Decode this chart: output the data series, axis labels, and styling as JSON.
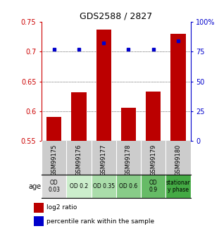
{
  "title": "GDS2588 / 2827",
  "samples": [
    "GSM99175",
    "GSM99176",
    "GSM99177",
    "GSM99178",
    "GSM99179",
    "GSM99180"
  ],
  "log2_ratio": [
    0.59,
    0.632,
    0.737,
    0.606,
    0.633,
    0.73
  ],
  "percentile_rank": [
    77,
    77,
    82,
    77,
    77,
    84
  ],
  "bar_bottom": 0.55,
  "bar_color": "#bb0000",
  "dot_color": "#0000cc",
  "ylim_left": [
    0.55,
    0.75
  ],
  "ylim_right": [
    0,
    100
  ],
  "yticks_left": [
    0.55,
    0.6,
    0.65,
    0.7,
    0.75
  ],
  "yticks_right": [
    0,
    25,
    50,
    75,
    100
  ],
  "ytick_labels_left": [
    "0.55",
    "0.6",
    "0.65",
    "0.7",
    "0.75"
  ],
  "ytick_labels_right": [
    "0",
    "25",
    "50",
    "75",
    "100%"
  ],
  "condition_labels": [
    "OD\n0.03",
    "OD 0.2",
    "OD 0.35",
    "OD 0.6",
    "OD\n0.9",
    "stationar\ny phase"
  ],
  "cond_colors": [
    "#d8d8d8",
    "#cceecc",
    "#aaddaa",
    "#88cc88",
    "#66bb66",
    "#44aa44"
  ],
  "sample_bg": "#cccccc",
  "age_label": "age",
  "legend_red": "log2 ratio",
  "legend_blue": "percentile rank within the sample",
  "figsize": [
    3.11,
    3.45
  ],
  "dpi": 100
}
